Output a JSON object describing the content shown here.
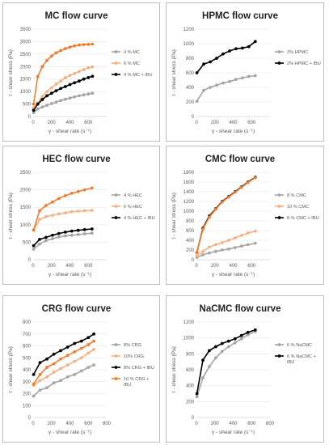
{
  "chart_data": [
    {
      "type": "line",
      "title": "MC flow curve",
      "xlabel": "γ - shear rate (s⁻¹)",
      "ylabel": "τ - shear stress (Pa)",
      "xlim": [
        0,
        800
      ],
      "ylim": [
        0,
        3500
      ],
      "xticks": [
        0,
        200,
        400,
        600
      ],
      "yticks": [
        0,
        500,
        1000,
        1500,
        2000,
        2500,
        3000,
        3500
      ],
      "legend": "right",
      "series": [
        {
          "name": "4 % MC",
          "color": "#a5a5a5",
          "x": [
            5,
            50,
            100,
            150,
            200,
            250,
            300,
            350,
            400,
            450,
            500,
            550,
            600,
            645
          ],
          "y": [
            150,
            300,
            380,
            450,
            520,
            580,
            640,
            690,
            740,
            790,
            830,
            870,
            900,
            930
          ]
        },
        {
          "name": "6 % MC",
          "color": "#f4b183",
          "x": [
            5,
            50,
            100,
            150,
            200,
            250,
            300,
            350,
            400,
            450,
            500,
            550,
            600,
            645
          ],
          "y": [
            350,
            550,
            800,
            1000,
            1150,
            1300,
            1420,
            1550,
            1650,
            1720,
            1800,
            1880,
            1950,
            1990
          ]
        },
        {
          "name": "4 % MC + IBU",
          "color": "#000000",
          "x": [
            5,
            50,
            100,
            150,
            200,
            250,
            300,
            350,
            400,
            450,
            500,
            550,
            600,
            645
          ],
          "y": [
            250,
            500,
            680,
            830,
            930,
            1030,
            1120,
            1200,
            1280,
            1350,
            1420,
            1500,
            1560,
            1610
          ]
        },
        {
          "name": "",
          "color": "#ed7d31",
          "x": [
            5,
            50,
            100,
            150,
            200,
            250,
            300,
            350,
            400,
            450,
            500,
            550,
            600,
            645
          ],
          "y": [
            500,
            1600,
            2000,
            2250,
            2420,
            2550,
            2640,
            2720,
            2780,
            2830,
            2860,
            2880,
            2890,
            2900
          ]
        }
      ]
    },
    {
      "type": "line",
      "title": "HPMC flow curve",
      "xlabel": "γ - shear rate (s⁻¹)",
      "ylabel": "τ - shear stress (Pa)",
      "xlim": [
        0,
        800
      ],
      "ylim": [
        0,
        1200
      ],
      "xticks": [
        0,
        200,
        400,
        600
      ],
      "yticks": [
        0,
        200,
        400,
        600,
        800,
        1000,
        1200
      ],
      "legend": "right",
      "series": [
        {
          "name": "2% HPMC",
          "color": "#a5a5a5",
          "x": [
            5,
            80,
            150,
            220,
            290,
            360,
            430,
            500,
            570,
            640
          ],
          "y": [
            210,
            360,
            400,
            430,
            460,
            480,
            510,
            530,
            550,
            560
          ]
        },
        {
          "name": "2% HPMC + IBU",
          "color": "#000000",
          "x": [
            5,
            80,
            150,
            220,
            290,
            360,
            430,
            500,
            570,
            640
          ],
          "y": [
            600,
            720,
            750,
            800,
            860,
            900,
            930,
            940,
            960,
            1030
          ]
        }
      ]
    },
    {
      "type": "line",
      "title": "HEC flow curve",
      "xlabel": "γ - shear rate (s⁻¹)",
      "ylabel": "τ - shear stress (Pa)",
      "xlim": [
        0,
        800
      ],
      "ylim": [
        0,
        2500
      ],
      "xticks": [
        0,
        200,
        400,
        600
      ],
      "yticks": [
        0,
        500,
        1000,
        1500,
        2000,
        2500
      ],
      "legend": "right",
      "series": [
        {
          "name": "4 % HEC",
          "color": "#a5a5a5",
          "x": [
            5,
            70,
            140,
            210,
            280,
            350,
            420,
            490,
            560,
            640
          ],
          "y": [
            300,
            450,
            550,
            600,
            650,
            680,
            700,
            720,
            740,
            760
          ]
        },
        {
          "name": "6 % HEC",
          "color": "#f4b183",
          "x": [
            5,
            70,
            140,
            210,
            280,
            350,
            420,
            490,
            560,
            640
          ],
          "y": [
            850,
            1150,
            1230,
            1270,
            1310,
            1340,
            1370,
            1390,
            1400,
            1410
          ]
        },
        {
          "name": "4 % HEC + IBU",
          "color": "#000000",
          "x": [
            5,
            70,
            140,
            210,
            280,
            350,
            420,
            490,
            560,
            640
          ],
          "y": [
            400,
            580,
            640,
            700,
            750,
            790,
            820,
            840,
            860,
            880
          ]
        },
        {
          "name": "",
          "color": "#ed7d31",
          "x": [
            5,
            70,
            140,
            210,
            280,
            350,
            420,
            490,
            560,
            640
          ],
          "y": [
            850,
            1400,
            1550,
            1650,
            1750,
            1830,
            1900,
            1950,
            2000,
            2050
          ]
        }
      ]
    },
    {
      "type": "line",
      "title": "CMC flow curve",
      "xlabel": "γ - shear rate (s⁻¹)",
      "ylabel": "τ - shear stress (Pa)",
      "xlim": [
        0,
        800
      ],
      "ylim": [
        0,
        1800
      ],
      "xticks": [
        0,
        200,
        400,
        600
      ],
      "yticks": [
        0,
        200,
        400,
        600,
        800,
        1000,
        1200,
        1400,
        1600,
        1800
      ],
      "legend": "right",
      "series": [
        {
          "name": "8 % CMC",
          "color": "#a5a5a5",
          "x": [
            5,
            70,
            140,
            210,
            280,
            350,
            420,
            490,
            560,
            640
          ],
          "y": [
            50,
            100,
            140,
            170,
            200,
            220,
            250,
            280,
            310,
            340
          ]
        },
        {
          "name": "10 % CMC",
          "color": "#f4b183",
          "x": [
            5,
            70,
            140,
            210,
            280,
            350,
            420,
            490,
            560,
            640
          ],
          "y": [
            80,
            170,
            260,
            310,
            350,
            400,
            450,
            500,
            550,
            590
          ]
        },
        {
          "name": "8 % CMC + IBU",
          "color": "#000000",
          "x": [
            5,
            70,
            140,
            210,
            280,
            350,
            420,
            490,
            560,
            640
          ],
          "y": [
            150,
            650,
            900,
            1050,
            1200,
            1300,
            1400,
            1500,
            1600,
            1700
          ]
        },
        {
          "name": "",
          "color": "#ed7d31",
          "x": [
            5,
            70,
            140,
            210,
            280,
            350,
            420,
            490,
            560,
            640
          ],
          "y": [
            150,
            630,
            880,
            1040,
            1190,
            1290,
            1390,
            1490,
            1590,
            1690
          ]
        }
      ]
    },
    {
      "type": "line",
      "title": "CRG flow curve",
      "xlabel": "γ - shear rate (s⁻¹)",
      "ylabel": "τ - shear stress (Pa)",
      "xlim": [
        0,
        800
      ],
      "ylim": [
        0,
        800
      ],
      "xticks": [
        0,
        200,
        400,
        600,
        800
      ],
      "yticks": [
        0,
        100,
        200,
        300,
        400,
        500,
        600,
        700,
        800
      ],
      "legend": "right",
      "series": [
        {
          "name": "8% CRG",
          "color": "#a5a5a5",
          "x": [
            5,
            75,
            150,
            225,
            300,
            375,
            450,
            525,
            600,
            660
          ],
          "y": [
            180,
            230,
            250,
            290,
            310,
            340,
            360,
            390,
            420,
            440
          ]
        },
        {
          "name": "10% CRG",
          "color": "#f4b183",
          "x": [
            5,
            75,
            150,
            225,
            300,
            375,
            450,
            525,
            600,
            660
          ],
          "y": [
            270,
            310,
            340,
            380,
            410,
            440,
            470,
            500,
            540,
            570
          ]
        },
        {
          "name": "8% CRG + IBU",
          "color": "#000000",
          "x": [
            5,
            75,
            150,
            225,
            300,
            375,
            450,
            525,
            600,
            660
          ],
          "y": [
            360,
            460,
            490,
            530,
            560,
            590,
            620,
            640,
            670,
            700
          ]
        },
        {
          "name": "10 % CRG + IBU",
          "color": "#ed7d31",
          "x": [
            5,
            75,
            150,
            225,
            300,
            375,
            450,
            525,
            600,
            660
          ],
          "y": [
            280,
            360,
            420,
            450,
            490,
            520,
            550,
            580,
            610,
            640
          ]
        }
      ]
    },
    {
      "type": "line",
      "title": "NaCMC flow curve",
      "xlabel": "γ - shear rate (s⁻¹)",
      "ylabel": "τ - shear stress (Pa)",
      "xlim": [
        0,
        800
      ],
      "ylim": [
        0,
        1200
      ],
      "xticks": [
        0,
        200,
        400,
        600,
        800
      ],
      "yticks": [
        0,
        200,
        400,
        600,
        800,
        1000,
        1200
      ],
      "legend": "right",
      "series": [
        {
          "name": "6 % NaCMC",
          "color": "#a5a5a5",
          "x": [
            5,
            70,
            140,
            210,
            280,
            350,
            420,
            490,
            560,
            640
          ],
          "y": [
            260,
            500,
            640,
            750,
            830,
            890,
            940,
            990,
            1040,
            1080
          ]
        },
        {
          "name": "6 % NaCMC + IBU",
          "color": "#000000",
          "x": [
            5,
            70,
            140,
            210,
            280,
            350,
            420,
            490,
            560,
            640
          ],
          "y": [
            300,
            720,
            840,
            890,
            930,
            960,
            990,
            1030,
            1070,
            1100
          ]
        }
      ]
    }
  ]
}
